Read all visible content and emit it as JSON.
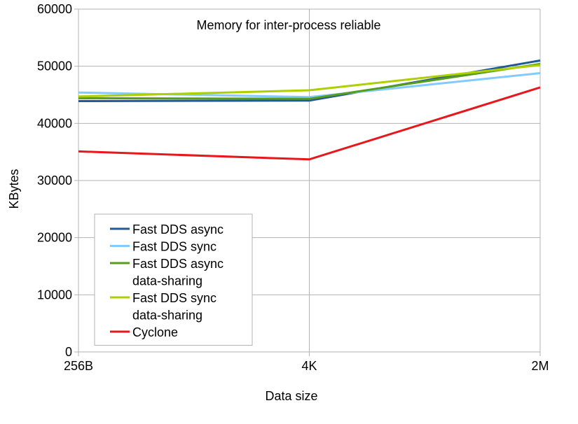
{
  "chart_data": {
    "type": "line",
    "title": "Memory for inter-process reliable",
    "xlabel": "Data size",
    "ylabel": "KBytes",
    "categories": [
      "256B",
      "4K",
      "2M"
    ],
    "ylim": [
      0,
      60000
    ],
    "yticks": [
      0,
      10000,
      20000,
      30000,
      40000,
      50000,
      60000
    ],
    "grid": true,
    "legend_position": "bottom-left",
    "series": [
      {
        "name": "Fast DDS async",
        "label_lines": [
          "Fast DDS async"
        ],
        "color": "#1f5a96",
        "values": [
          43900,
          44000,
          51000
        ]
      },
      {
        "name": "Fast DDS sync",
        "label_lines": [
          "Fast DDS sync"
        ],
        "color": "#83caff",
        "values": [
          45400,
          44600,
          48800
        ]
      },
      {
        "name": "Fast DDS async data-sharing",
        "label_lines": [
          "Fast DDS async",
          "data-sharing"
        ],
        "color": "#579d1c",
        "values": [
          44400,
          44300,
          50400
        ]
      },
      {
        "name": "Fast DDS sync data-sharing",
        "label_lines": [
          "Fast DDS sync",
          "data-sharing"
        ],
        "color": "#aecf00",
        "values": [
          44700,
          45800,
          50200
        ]
      },
      {
        "name": "Cyclone",
        "label_lines": [
          "Cyclone"
        ],
        "color": "#e8171c",
        "values": [
          35100,
          33700,
          46300
        ]
      }
    ]
  }
}
